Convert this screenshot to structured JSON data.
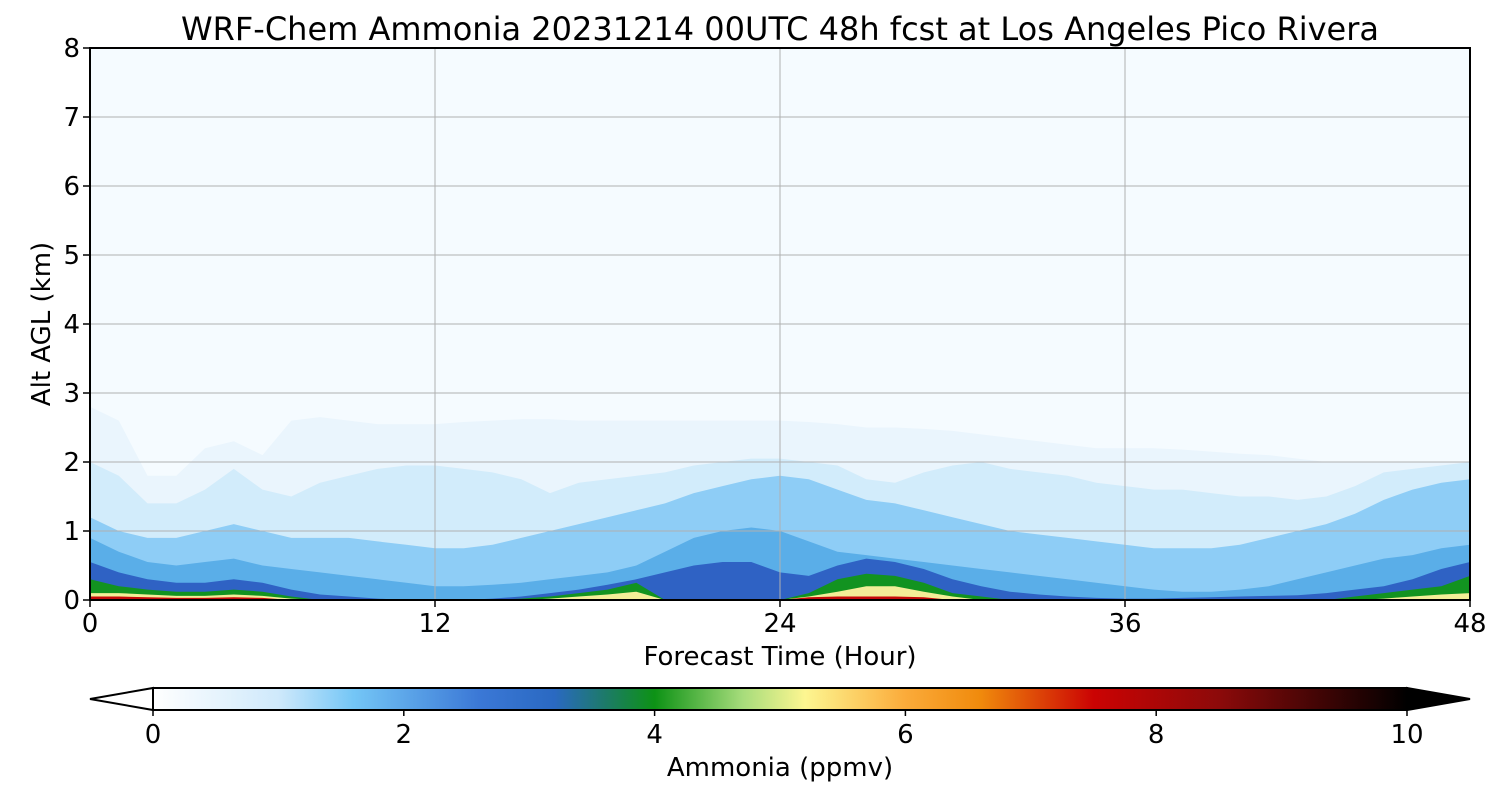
{
  "chart_data": {
    "type": "heatmap",
    "title": "WRF-Chem Ammonia  20231214 00UTC 48h fcst at Los Angeles Pico Rivera",
    "xlabel": "Forecast Time (Hour)",
    "ylabel": "Alt AGL (km)",
    "x_ticks": [
      "0",
      "12",
      "24",
      "36",
      "48"
    ],
    "y_ticks": [
      "0",
      "1",
      "2",
      "3",
      "4",
      "5",
      "6",
      "7",
      "8"
    ],
    "xlim": [
      0,
      48
    ],
    "ylim": [
      0,
      8
    ],
    "grid": true,
    "colorbar": {
      "label": "Ammonia  (ppmv)",
      "ticks": [
        "0",
        "2",
        "4",
        "6",
        "8",
        "10"
      ],
      "range": [
        0,
        10
      ],
      "extend": "both"
    },
    "approx_layer_tops_km": {
      "hours": [
        0,
        1,
        2,
        3,
        4,
        5,
        6,
        7,
        8,
        9,
        10,
        11,
        12,
        13,
        14,
        15,
        16,
        17,
        18,
        19,
        20,
        21,
        22,
        23,
        24,
        25,
        26,
        27,
        28,
        29,
        30,
        31,
        32,
        33,
        34,
        35,
        36,
        37,
        38,
        39,
        40,
        41,
        42,
        43,
        44,
        45,
        46,
        47,
        48
      ],
      "conc_0.1": [
        2.8,
        2.6,
        1.8,
        1.8,
        2.2,
        2.3,
        2.1,
        2.6,
        2.65,
        2.6,
        2.55,
        2.55,
        2.55,
        2.58,
        2.6,
        2.62,
        2.62,
        2.6,
        2.6,
        2.6,
        2.6,
        2.6,
        2.6,
        2.6,
        2.6,
        2.58,
        2.55,
        2.5,
        2.5,
        2.48,
        2.45,
        2.4,
        2.35,
        2.3,
        2.25,
        2.2,
        2.2,
        2.2,
        2.18,
        2.15,
        2.12,
        2.1,
        2.05,
        2.0,
        2.0,
        2.0,
        2.0,
        2.0,
        2.0
      ],
      "conc_0.5": [
        2.0,
        1.8,
        1.4,
        1.4,
        1.6,
        1.9,
        1.6,
        1.5,
        1.7,
        1.8,
        1.9,
        1.95,
        1.95,
        1.9,
        1.85,
        1.75,
        1.55,
        1.7,
        1.75,
        1.8,
        1.85,
        1.95,
        2.0,
        2.05,
        2.05,
        2.0,
        1.95,
        1.75,
        1.7,
        1.85,
        1.95,
        2.0,
        1.9,
        1.85,
        1.8,
        1.7,
        1.65,
        1.6,
        1.6,
        1.55,
        1.5,
        1.5,
        1.45,
        1.5,
        1.65,
        1.85,
        1.9,
        1.95,
        2.0
      ],
      "conc_1.0": [
        1.2,
        1.0,
        0.9,
        0.9,
        1.0,
        1.1,
        1.0,
        0.9,
        0.9,
        0.9,
        0.85,
        0.8,
        0.75,
        0.75,
        0.8,
        0.9,
        1.0,
        1.1,
        1.2,
        1.3,
        1.4,
        1.55,
        1.65,
        1.75,
        1.8,
        1.75,
        1.6,
        1.45,
        1.4,
        1.3,
        1.2,
        1.1,
        1.0,
        0.95,
        0.9,
        0.85,
        0.8,
        0.75,
        0.75,
        0.75,
        0.8,
        0.9,
        1.0,
        1.1,
        1.25,
        1.45,
        1.6,
        1.7,
        1.75
      ],
      "conc_2.0": [
        0.9,
        0.7,
        0.55,
        0.5,
        0.55,
        0.6,
        0.5,
        0.45,
        0.4,
        0.35,
        0.3,
        0.25,
        0.2,
        0.2,
        0.22,
        0.25,
        0.3,
        0.35,
        0.4,
        0.5,
        0.7,
        0.9,
        1.0,
        1.05,
        1.0,
        0.85,
        0.7,
        0.65,
        0.6,
        0.55,
        0.5,
        0.45,
        0.4,
        0.35,
        0.3,
        0.25,
        0.2,
        0.15,
        0.12,
        0.12,
        0.15,
        0.2,
        0.3,
        0.4,
        0.5,
        0.6,
        0.65,
        0.75,
        0.8
      ],
      "conc_3.0": [
        0.55,
        0.4,
        0.3,
        0.25,
        0.25,
        0.3,
        0.25,
        0.15,
        0.08,
        0.05,
        0.02,
        0.0,
        0.0,
        0.0,
        0.02,
        0.05,
        0.1,
        0.15,
        0.22,
        0.3,
        0.4,
        0.5,
        0.55,
        0.55,
        0.4,
        0.35,
        0.5,
        0.6,
        0.55,
        0.45,
        0.3,
        0.2,
        0.12,
        0.08,
        0.05,
        0.03,
        0.02,
        0.02,
        0.03,
        0.04,
        0.05,
        0.06,
        0.07,
        0.1,
        0.15,
        0.2,
        0.3,
        0.45,
        0.55
      ],
      "conc_4.0": [
        0.3,
        0.2,
        0.15,
        0.12,
        0.12,
        0.15,
        0.12,
        0.05,
        0.0,
        0.0,
        0.0,
        0.0,
        0.0,
        0.0,
        0.0,
        0.02,
        0.05,
        0.1,
        0.15,
        0.25,
        0.0,
        0.0,
        0.0,
        0.0,
        0.0,
        0.1,
        0.3,
        0.38,
        0.35,
        0.25,
        0.1,
        0.05,
        0.0,
        0.0,
        0.0,
        0.0,
        0.0,
        0.0,
        0.0,
        0.0,
        0.0,
        0.0,
        0.0,
        0.0,
        0.05,
        0.1,
        0.15,
        0.2,
        0.35
      ],
      "conc_5.5": [
        0.1,
        0.1,
        0.08,
        0.06,
        0.06,
        0.08,
        0.06,
        0.02,
        0.0,
        0.0,
        0.0,
        0.0,
        0.0,
        0.0,
        0.0,
        0.0,
        0.02,
        0.05,
        0.08,
        0.12,
        0.0,
        0.0,
        0.0,
        0.0,
        0.0,
        0.05,
        0.12,
        0.2,
        0.2,
        0.12,
        0.05,
        0.0,
        0.0,
        0.0,
        0.0,
        0.0,
        0.0,
        0.0,
        0.0,
        0.0,
        0.0,
        0.0,
        0.0,
        0.0,
        0.0,
        0.02,
        0.05,
        0.08,
        0.1
      ],
      "conc_7.5": [
        0.05,
        0.05,
        0.04,
        0.03,
        0.03,
        0.04,
        0.03,
        0.0,
        0.0,
        0.0,
        0.0,
        0.0,
        0.0,
        0.0,
        0.0,
        0.0,
        0.0,
        0.0,
        0.0,
        0.0,
        0.0,
        0.0,
        0.0,
        0.0,
        0.0,
        0.04,
        0.05,
        0.05,
        0.05,
        0.04,
        0.0,
        0.0,
        0.0,
        0.0,
        0.0,
        0.0,
        0.0,
        0.0,
        0.0,
        0.0,
        0.0,
        0.0,
        0.0,
        0.0,
        0.0,
        0.0,
        0.0,
        0.0,
        0.0
      ]
    }
  },
  "colors": {
    "background_field": "#f5fbff",
    "conc_0.1": "#eaf5fd",
    "conc_0.5": "#d2ecfb",
    "conc_1.0": "#8ecdf6",
    "conc_2.0": "#5aaee8",
    "conc_3.0": "#2f62c4",
    "conc_4.0": "#129320",
    "conc_5.5": "#f3ee98",
    "conc_7.5": "#c40a0a",
    "grid": "#b0b0b0"
  }
}
